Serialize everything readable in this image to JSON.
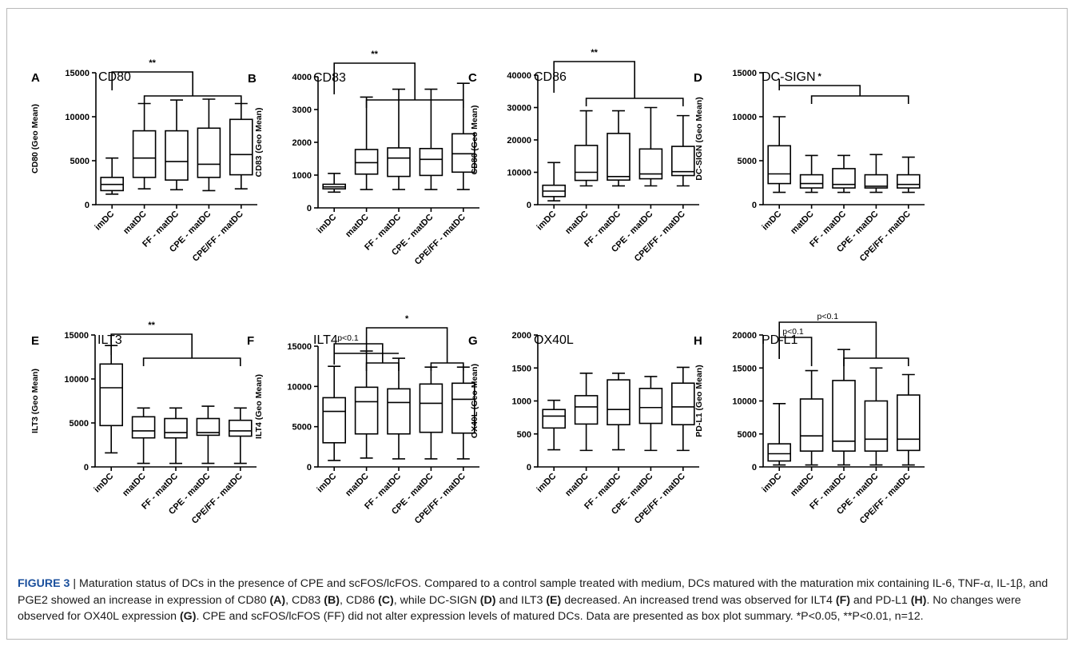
{
  "groups": [
    "imDC",
    "matDC",
    "FF - matDC",
    "CPE - matDC",
    "CPE/FF - matDC"
  ],
  "chart_data": [
    {
      "letter": "A",
      "title": "CD80",
      "type": "box",
      "ylabel": "CD80 (Geo Mean)",
      "ylim": [
        0,
        15000
      ],
      "yticks": [
        "0",
        "5000",
        "10000",
        "15000"
      ],
      "boxes": [
        {
          "min": 1200,
          "q1": 1600,
          "median": 2300,
          "q3": 3100,
          "max": 5300
        },
        {
          "min": 1800,
          "q1": 3100,
          "median": 5300,
          "q3": 8400,
          "max": 11500
        },
        {
          "min": 1700,
          "q1": 2800,
          "median": 4900,
          "q3": 8400,
          "max": 11900
        },
        {
          "min": 1600,
          "q1": 3100,
          "median": 4600,
          "q3": 8700,
          "max": 12000
        },
        {
          "min": 1800,
          "q1": 3400,
          "median": 5700,
          "q3": 9700,
          "max": 11500
        }
      ],
      "annotations": [
        {
          "text": "**"
        }
      ]
    },
    {
      "letter": "B",
      "title": "CD83",
      "type": "box",
      "ylabel": "CD83 (Geo  Mean)",
      "ylim": [
        0,
        4000
      ],
      "yticks": [
        "0",
        "1000",
        "2000",
        "3000",
        "4000"
      ],
      "boxes": [
        {
          "min": 480,
          "q1": 580,
          "median": 640,
          "q3": 720,
          "max": 1050
        },
        {
          "min": 560,
          "q1": 1030,
          "median": 1380,
          "q3": 1780,
          "max": 3380
        },
        {
          "min": 560,
          "q1": 960,
          "median": 1520,
          "q3": 1830,
          "max": 3620
        },
        {
          "min": 560,
          "q1": 990,
          "median": 1480,
          "q3": 1810,
          "max": 3620
        },
        {
          "min": 560,
          "q1": 1090,
          "median": 1650,
          "q3": 2260,
          "max": 3800
        }
      ],
      "annotations": [
        {
          "text": "**"
        }
      ]
    },
    {
      "letter": "C",
      "title": "CD86",
      "type": "box",
      "ylabel": "CD86 (Geo Mean)",
      "ylim": [
        0,
        40000
      ],
      "yticks": [
        "0",
        "10000",
        "20000",
        "30000",
        "40000"
      ],
      "boxes": [
        {
          "min": 1200,
          "q1": 2500,
          "median": 4200,
          "q3": 6000,
          "max": 13000
        },
        {
          "min": 5800,
          "q1": 7500,
          "median": 10000,
          "q3": 18300,
          "max": 29000
        },
        {
          "min": 5800,
          "q1": 7600,
          "median": 8700,
          "q3": 22000,
          "max": 29000
        },
        {
          "min": 5800,
          "q1": 8000,
          "median": 9500,
          "q3": 17200,
          "max": 30000
        },
        {
          "min": 5800,
          "q1": 9000,
          "median": 10200,
          "q3": 18000,
          "max": 27500
        }
      ],
      "annotations": [
        {
          "text": "**"
        }
      ]
    },
    {
      "letter": "D",
      "title": "DC-SIGN",
      "type": "box",
      "ylabel": "DC-SIGN (Geo  Mean)",
      "ylim": [
        0,
        15000
      ],
      "yticks": [
        "0",
        "5000",
        "10000",
        "15000"
      ],
      "boxes": [
        {
          "min": 1400,
          "q1": 2400,
          "median": 3500,
          "q3": 6700,
          "max": 10000
        },
        {
          "min": 1400,
          "q1": 1900,
          "median": 2400,
          "q3": 3400,
          "max": 5600
        },
        {
          "min": 1400,
          "q1": 1900,
          "median": 2300,
          "q3": 4100,
          "max": 5600
        },
        {
          "min": 1400,
          "q1": 1900,
          "median": 2100,
          "q3": 3400,
          "max": 5700
        },
        {
          "min": 1400,
          "q1": 1900,
          "median": 2300,
          "q3": 3400,
          "max": 5400
        }
      ],
      "annotations": [
        {
          "text": "*"
        }
      ]
    },
    {
      "letter": "E",
      "title": "ILT3",
      "type": "box",
      "ylabel": "ILT3 (Geo Mean)",
      "ylim": [
        0,
        15000
      ],
      "yticks": [
        "0",
        "5000",
        "10000",
        "15000"
      ],
      "boxes": [
        {
          "min": 1600,
          "q1": 4700,
          "median": 9000,
          "q3": 11700,
          "max": 13800
        },
        {
          "min": 400,
          "q1": 3300,
          "median": 4100,
          "q3": 5700,
          "max": 6700
        },
        {
          "min": 400,
          "q1": 3300,
          "median": 3900,
          "q3": 5500,
          "max": 6700
        },
        {
          "min": 400,
          "q1": 3600,
          "median": 3900,
          "q3": 5500,
          "max": 6900
        },
        {
          "min": 400,
          "q1": 3500,
          "median": 4100,
          "q3": 5300,
          "max": 6700
        }
      ],
      "annotations": [
        {
          "text": "**"
        }
      ]
    },
    {
      "letter": "F",
      "title": "ILT4",
      "type": "box",
      "ylabel": "ILT4 (Geo Mean)",
      "ylim": [
        0,
        15000
      ],
      "yticks": [
        "0",
        "5000",
        "10000",
        "15000"
      ],
      "boxes": [
        {
          "min": 800,
          "q1": 3000,
          "median": 6900,
          "q3": 8600,
          "max": 12500
        },
        {
          "min": 1100,
          "q1": 4100,
          "median": 8100,
          "q3": 9900,
          "max": 14400
        },
        {
          "min": 1000,
          "q1": 4100,
          "median": 8000,
          "q3": 9700,
          "max": 13500
        },
        {
          "min": 1000,
          "q1": 4300,
          "median": 7900,
          "q3": 10300,
          "max": 12400
        },
        {
          "min": 1000,
          "q1": 4200,
          "median": 8400,
          "q3": 10400,
          "max": 12400
        }
      ],
      "annotations": [
        {
          "text": "p<0.1"
        },
        {
          "text": "*"
        }
      ]
    },
    {
      "letter": "G",
      "title": "OX40L",
      "type": "box",
      "ylabel": "OX40L (Geo Mean)",
      "ylim": [
        0,
        2000
      ],
      "yticks": [
        "0",
        "500",
        "1000",
        "1500",
        "2000"
      ],
      "boxes": [
        {
          "min": 260,
          "q1": 590,
          "median": 770,
          "q3": 870,
          "max": 1010
        },
        {
          "min": 250,
          "q1": 650,
          "median": 910,
          "q3": 1080,
          "max": 1420
        },
        {
          "min": 260,
          "q1": 640,
          "median": 870,
          "q3": 1320,
          "max": 1420
        },
        {
          "min": 250,
          "q1": 660,
          "median": 900,
          "q3": 1190,
          "max": 1370
        },
        {
          "min": 250,
          "q1": 640,
          "median": 910,
          "q3": 1270,
          "max": 1510
        }
      ],
      "annotations": []
    },
    {
      "letter": "H",
      "title": "PD-L1",
      "type": "box",
      "ylabel": "PD-L1 (Geo Mean)",
      "ylim": [
        0,
        20000
      ],
      "yticks": [
        "0",
        "5000",
        "10000",
        "15000",
        "20000"
      ],
      "boxes": [
        {
          "min": 300,
          "q1": 900,
          "median": 2000,
          "q3": 3500,
          "max": 9600
        },
        {
          "min": 300,
          "q1": 2400,
          "median": 4700,
          "q3": 10300,
          "max": 14600
        },
        {
          "min": 300,
          "q1": 2400,
          "median": 3900,
          "q3": 13100,
          "max": 17800
        },
        {
          "min": 300,
          "q1": 2400,
          "median": 4200,
          "q3": 10000,
          "max": 15000
        },
        {
          "min": 300,
          "q1": 2500,
          "median": 4200,
          "q3": 10900,
          "max": 14000
        }
      ],
      "annotations": [
        {
          "text": "p<0.1"
        },
        {
          "text": "p<0.1"
        }
      ]
    }
  ],
  "caption": {
    "label": "FIGURE 3",
    "sep": " | ",
    "parts": [
      {
        "t": "Maturation status of DCs in the presence of CPE and scFOS/lcFOS. Compared to a control sample treated with medium, DCs matured with the maturation mix containing IL-6, TNF-α, IL-1β, and PGE2 showed an increase in expression of CD80 "
      },
      {
        "b": "(A)"
      },
      {
        "t": ", CD83 "
      },
      {
        "b": "(B)"
      },
      {
        "t": ", CD86 "
      },
      {
        "b": "(C)"
      },
      {
        "t": ", while DC-SIGN "
      },
      {
        "b": "(D)"
      },
      {
        "t": " and ILT3 "
      },
      {
        "b": "(E)"
      },
      {
        "t": " decreased. An increased trend was observed for ILT4 "
      },
      {
        "b": "(F)"
      },
      {
        "t": " and PD-L1 "
      },
      {
        "b": "(H)"
      },
      {
        "t": ". No changes were observed for OX40L expression "
      },
      {
        "b": "(G)"
      },
      {
        "t": ". CPE and scFOS/lcFOS (FF) did not alter expression levels of matured DCs. Data are presented as box plot summary. *P<0.05, **P<0.01, n=12."
      }
    ]
  }
}
